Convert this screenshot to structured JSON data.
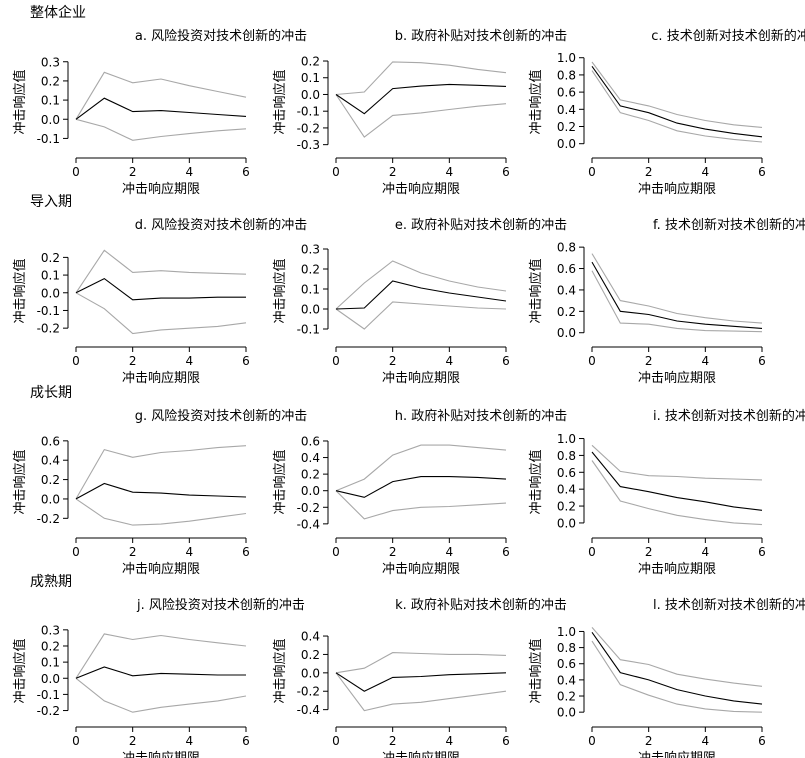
{
  "groups": [
    {
      "label": "整体企业"
    },
    {
      "label": "导入期"
    },
    {
      "label": "成长期"
    },
    {
      "label": "成熟期"
    }
  ],
  "common": {
    "xlabel": "冲击响应期限",
    "ylabel": "冲击响应值"
  },
  "colors": {
    "response": "#000000",
    "band": "#a8a8a8",
    "axis": "#000000"
  },
  "chart_data": [
    {
      "type": "line",
      "title": "a. 风险投资对技术创新的冲击",
      "xlabel": "冲击响应期限",
      "ylabel": "冲击响应值",
      "x": [
        0,
        1,
        2,
        3,
        4,
        5,
        6
      ],
      "xticks": [
        0,
        2,
        4,
        6
      ],
      "xlim": [
        0,
        6
      ],
      "ylim": [
        -0.15,
        0.33
      ],
      "yticks": [
        -0.1,
        0.0,
        0.1,
        0.2,
        0.3
      ],
      "series": [
        {
          "values": [
            0,
            0.11,
            0.04,
            0.045,
            0.035,
            0.025,
            0.015
          ]
        },
        {
          "values": [
            0,
            0.245,
            0.19,
            0.21,
            0.175,
            0.145,
            0.115
          ]
        },
        {
          "values": [
            0,
            -0.04,
            -0.11,
            -0.09,
            -0.075,
            -0.06,
            -0.05
          ]
        }
      ]
    },
    {
      "type": "line",
      "title": "b. 政府补贴对技术创新的冲击",
      "xlabel": "冲击响应期限",
      "ylabel": "冲击响应值",
      "x": [
        0,
        1,
        2,
        3,
        4,
        5,
        6
      ],
      "xticks": [
        0,
        2,
        4,
        6
      ],
      "xlim": [
        0,
        6
      ],
      "ylim": [
        -0.32,
        0.23
      ],
      "yticks": [
        -0.3,
        -0.2,
        -0.1,
        0.0,
        0.1,
        0.2
      ],
      "series": [
        {
          "values": [
            0,
            -0.115,
            0.035,
            0.05,
            0.06,
            0.055,
            0.048
          ]
        },
        {
          "values": [
            0,
            0.015,
            0.195,
            0.19,
            0.175,
            0.15,
            0.13
          ]
        },
        {
          "values": [
            0,
            -0.255,
            -0.125,
            -0.11,
            -0.09,
            -0.07,
            -0.055
          ]
        }
      ]
    },
    {
      "type": "line",
      "title": "c. 技术创新对技术创新的冲击",
      "xlabel": "冲击响应期限",
      "ylabel": "冲击响应值",
      "x": [
        0,
        1,
        2,
        3,
        4,
        5,
        6
      ],
      "xticks": [
        0,
        2,
        4,
        6
      ],
      "xlim": [
        0,
        6
      ],
      "ylim": [
        -0.05,
        1.02
      ],
      "yticks": [
        0.0,
        0.2,
        0.4,
        0.6,
        0.8,
        1.0
      ],
      "series": [
        {
          "values": [
            0.9,
            0.44,
            0.36,
            0.24,
            0.17,
            0.12,
            0.08
          ]
        },
        {
          "values": [
            0.95,
            0.51,
            0.44,
            0.34,
            0.27,
            0.22,
            0.19
          ]
        },
        {
          "values": [
            0.85,
            0.36,
            0.27,
            0.15,
            0.09,
            0.05,
            0.02
          ]
        }
      ]
    },
    {
      "type": "line",
      "title": "d. 风险投资对技术创新的冲击",
      "xlabel": "冲击响应期限",
      "ylabel": "冲击响应值",
      "x": [
        0,
        1,
        2,
        3,
        4,
        5,
        6
      ],
      "xticks": [
        0,
        2,
        4,
        6
      ],
      "xlim": [
        0,
        6
      ],
      "ylim": [
        -0.25,
        0.27
      ],
      "yticks": [
        -0.2,
        -0.1,
        0.0,
        0.1,
        0.2
      ],
      "series": [
        {
          "values": [
            0,
            0.08,
            -0.04,
            -0.03,
            -0.03,
            -0.025,
            -0.025
          ]
        },
        {
          "values": [
            0,
            0.24,
            0.115,
            0.125,
            0.115,
            0.11,
            0.105
          ]
        },
        {
          "values": [
            0,
            -0.09,
            -0.23,
            -0.21,
            -0.2,
            -0.19,
            -0.17
          ]
        }
      ]
    },
    {
      "type": "line",
      "title": "e. 政府补贴对技术创新的冲击",
      "xlabel": "冲击响应期限",
      "ylabel": "冲击响应值",
      "x": [
        0,
        1,
        2,
        3,
        4,
        5,
        6
      ],
      "xticks": [
        0,
        2,
        4,
        6
      ],
      "xlim": [
        0,
        6
      ],
      "ylim": [
        -0.14,
        0.32
      ],
      "yticks": [
        -0.1,
        0.0,
        0.1,
        0.2,
        0.3
      ],
      "series": [
        {
          "values": [
            0,
            0.005,
            0.14,
            0.105,
            0.08,
            0.06,
            0.04
          ]
        },
        {
          "values": [
            0,
            0.13,
            0.24,
            0.18,
            0.14,
            0.11,
            0.09
          ]
        },
        {
          "values": [
            0,
            -0.1,
            0.035,
            0.025,
            0.015,
            0.005,
            0.0
          ]
        }
      ]
    },
    {
      "type": "line",
      "title": "f. 技术创新对技术创新的冲击",
      "xlabel": "冲击响应期限",
      "ylabel": "冲击响应值",
      "x": [
        0,
        1,
        2,
        3,
        4,
        5,
        6
      ],
      "xticks": [
        0,
        2,
        4,
        6
      ],
      "xlim": [
        0,
        6
      ],
      "ylim": [
        -0.04,
        0.82
      ],
      "yticks": [
        0.0,
        0.2,
        0.4,
        0.6,
        0.8
      ],
      "series": [
        {
          "values": [
            0.66,
            0.2,
            0.17,
            0.11,
            0.08,
            0.06,
            0.04
          ]
        },
        {
          "values": [
            0.74,
            0.3,
            0.25,
            0.18,
            0.14,
            0.11,
            0.09
          ]
        },
        {
          "values": [
            0.58,
            0.09,
            0.08,
            0.04,
            0.02,
            0.015,
            0.01
          ]
        }
      ]
    },
    {
      "type": "line",
      "title": "g. 风险投资对技术创新的冲击",
      "xlabel": "冲击响应期限",
      "ylabel": "冲击响应值",
      "x": [
        0,
        1,
        2,
        3,
        4,
        5,
        6
      ],
      "xticks": [
        0,
        2,
        4,
        6
      ],
      "xlim": [
        0,
        6
      ],
      "ylim": [
        -0.3,
        0.65
      ],
      "yticks": [
        -0.2,
        0.0,
        0.2,
        0.4,
        0.6
      ],
      "series": [
        {
          "values": [
            0,
            0.16,
            0.07,
            0.06,
            0.04,
            0.03,
            0.02
          ]
        },
        {
          "values": [
            0,
            0.51,
            0.43,
            0.48,
            0.5,
            0.53,
            0.55
          ]
        },
        {
          "values": [
            0,
            -0.2,
            -0.27,
            -0.26,
            -0.23,
            -0.19,
            -0.15
          ]
        }
      ]
    },
    {
      "type": "line",
      "title": "h. 政府补贴对技术创新的冲击",
      "xlabel": "冲击响应期限",
      "ylabel": "冲击响应值",
      "x": [
        0,
        1,
        2,
        3,
        4,
        5,
        6
      ],
      "xticks": [
        0,
        2,
        4,
        6
      ],
      "xlim": [
        0,
        6
      ],
      "ylim": [
        -0.45,
        0.66
      ],
      "yticks": [
        -0.4,
        -0.2,
        0.0,
        0.2,
        0.4,
        0.6
      ],
      "series": [
        {
          "values": [
            0,
            -0.08,
            0.11,
            0.17,
            0.17,
            0.16,
            0.14
          ]
        },
        {
          "values": [
            0,
            0.14,
            0.43,
            0.55,
            0.55,
            0.52,
            0.49
          ]
        },
        {
          "values": [
            0,
            -0.34,
            -0.24,
            -0.2,
            -0.19,
            -0.17,
            -0.15
          ]
        }
      ]
    },
    {
      "type": "line",
      "title": "i. 技术创新对技术创新的冲击",
      "xlabel": "冲击响应期限",
      "ylabel": "冲击响应值",
      "x": [
        0,
        1,
        2,
        3,
        4,
        5,
        6
      ],
      "xticks": [
        0,
        2,
        4,
        6
      ],
      "xlim": [
        0,
        6
      ],
      "ylim": [
        -0.06,
        1.03
      ],
      "yticks": [
        0.0,
        0.2,
        0.4,
        0.6,
        0.8,
        1.0
      ],
      "series": [
        {
          "values": [
            0.84,
            0.43,
            0.37,
            0.3,
            0.25,
            0.19,
            0.15
          ]
        },
        {
          "values": [
            0.92,
            0.61,
            0.56,
            0.55,
            0.53,
            0.52,
            0.51
          ]
        },
        {
          "values": [
            0.74,
            0.26,
            0.17,
            0.09,
            0.04,
            0.0,
            -0.02
          ]
        }
      ]
    },
    {
      "type": "line",
      "title": "j. 风险投资对技术创新的冲击",
      "xlabel": "冲击响应期限",
      "ylabel": "冲击响应值",
      "x": [
        0,
        1,
        2,
        3,
        4,
        5,
        6
      ],
      "xticks": [
        0,
        2,
        4,
        6
      ],
      "xlim": [
        0,
        6
      ],
      "ylim": [
        -0.24,
        0.33
      ],
      "yticks": [
        -0.2,
        -0.1,
        0.0,
        0.1,
        0.2,
        0.3
      ],
      "series": [
        {
          "values": [
            0,
            0.07,
            0.015,
            0.03,
            0.025,
            0.02,
            0.02
          ]
        },
        {
          "values": [
            0,
            0.275,
            0.24,
            0.265,
            0.24,
            0.22,
            0.2
          ]
        },
        {
          "values": [
            0,
            -0.14,
            -0.21,
            -0.18,
            -0.16,
            -0.14,
            -0.11
          ]
        }
      ]
    },
    {
      "type": "line",
      "title": "k. 政府补贴对技术创新的冲击",
      "xlabel": "冲击响应期限",
      "ylabel": "冲击响应值",
      "x": [
        0,
        1,
        2,
        3,
        4,
        5,
        6
      ],
      "xticks": [
        0,
        2,
        4,
        6
      ],
      "xlim": [
        0,
        6
      ],
      "ylim": [
        -0.48,
        0.52
      ],
      "yticks": [
        -0.4,
        -0.2,
        0.0,
        0.2,
        0.4
      ],
      "series": [
        {
          "values": [
            0,
            -0.2,
            -0.05,
            -0.04,
            -0.02,
            -0.01,
            0.0
          ]
        },
        {
          "values": [
            0,
            0.05,
            0.22,
            0.21,
            0.2,
            0.2,
            0.19
          ]
        },
        {
          "values": [
            0,
            -0.41,
            -0.34,
            -0.32,
            -0.28,
            -0.24,
            -0.2
          ]
        }
      ]
    },
    {
      "type": "line",
      "title": "l. 技术创新对技术创新的冲击",
      "xlabel": "冲击响应期限",
      "ylabel": "冲击响应值",
      "x": [
        0,
        1,
        2,
        3,
        4,
        5,
        6
      ],
      "xticks": [
        0,
        2,
        4,
        6
      ],
      "xlim": [
        0,
        6
      ],
      "ylim": [
        -0.06,
        1.08
      ],
      "yticks": [
        0.0,
        0.2,
        0.4,
        0.6,
        0.8,
        1.0
      ],
      "series": [
        {
          "values": [
            0.99,
            0.49,
            0.4,
            0.28,
            0.2,
            0.14,
            0.1
          ]
        },
        {
          "values": [
            1.05,
            0.65,
            0.59,
            0.47,
            0.41,
            0.36,
            0.32
          ]
        },
        {
          "values": [
            0.88,
            0.34,
            0.21,
            0.1,
            0.04,
            0.01,
            0.0
          ]
        }
      ]
    }
  ]
}
